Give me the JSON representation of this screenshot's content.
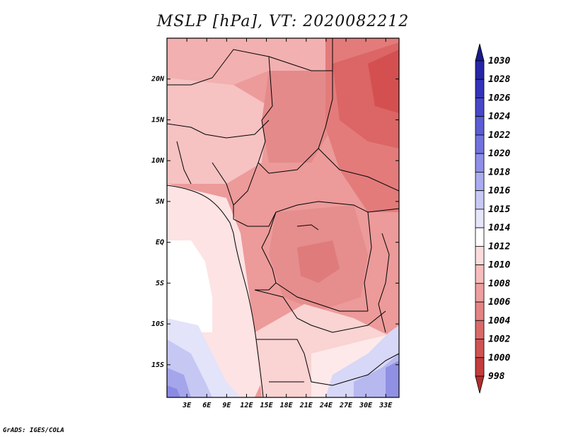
{
  "title": "MSLP [hPa], VT: 2020082212",
  "credit": "GrADS: IGES/COLA",
  "lat_labels": [
    "20N",
    "15N",
    "10N",
    "5N",
    "EQ",
    "5S",
    "10S",
    "15S"
  ],
  "lat_values": [
    20,
    15,
    10,
    5,
    0,
    -5,
    -10,
    -15
  ],
  "lon_labels": [
    "3E",
    "6E",
    "9E",
    "12E",
    "15E",
    "18E",
    "21E",
    "24E",
    "27E",
    "30E",
    "33E"
  ],
  "lon_values": [
    3,
    6,
    9,
    12,
    15,
    18,
    21,
    24,
    27,
    30,
    33
  ],
  "colorbar": {
    "levels": [
      "1030",
      "1028",
      "1026",
      "1024",
      "1022",
      "1020",
      "1018",
      "1016",
      "1015",
      "1014",
      "1012",
      "1010",
      "1008",
      "1006",
      "1004",
      "1002",
      "1000",
      "998"
    ],
    "colors": [
      "#1a1a8c",
      "#2626a6",
      "#3333bb",
      "#4747c8",
      "#5c5cd4",
      "#7272df",
      "#8f8fe8",
      "#ababf0",
      "#c9c9f6",
      "#e6e6fb",
      "#ffffff",
      "#fbdcdc",
      "#f5bdbd",
      "#ee9f9f",
      "#e48484",
      "#da6a6a",
      "#d05353",
      "#c33d3d",
      "#b52b2b"
    ],
    "bounds_lon_lat": {
      "lon_min": 0,
      "lon_max": 35,
      "lat_min": -19,
      "lat_max": 25
    }
  }
}
